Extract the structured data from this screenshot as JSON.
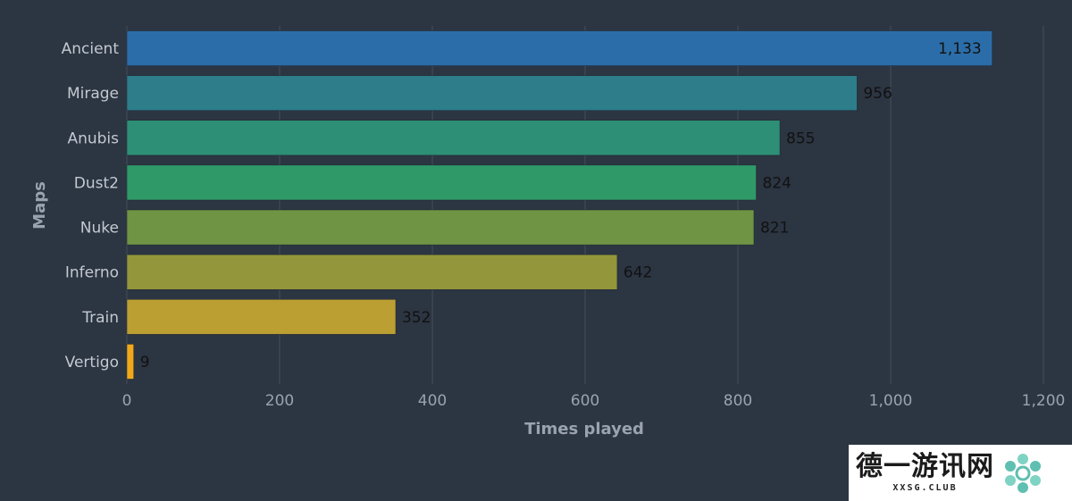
{
  "chart_data": {
    "type": "bar",
    "orientation": "horizontal",
    "title": "",
    "xlabel": "Times played",
    "ylabel": "Maps",
    "categories": [
      "Ancient",
      "Mirage",
      "Anubis",
      "Dust2",
      "Nuke",
      "Inferno",
      "Train",
      "Vertigo"
    ],
    "values": [
      1133,
      956,
      855,
      824,
      821,
      642,
      352,
      9
    ],
    "data_labels": [
      "1,133",
      "956",
      "855",
      "824",
      "821",
      "642",
      "352",
      "9"
    ],
    "xlim": [
      0,
      1200
    ],
    "xticks": [
      0,
      200,
      400,
      600,
      800,
      1000,
      1200
    ],
    "xtick_labels": [
      "0",
      "200",
      "400",
      "600",
      "800",
      "1,000",
      "1,200"
    ],
    "colors": [
      "#2b6da8",
      "#2d7d8a",
      "#2e8f77",
      "#2f9a68",
      "#6e9444",
      "#93963a",
      "#bb9f33",
      "#f0a81a"
    ],
    "grid": true,
    "legend": "none"
  },
  "watermark": {
    "main": "德一游讯网",
    "sub": "XXSG.CLUB"
  }
}
